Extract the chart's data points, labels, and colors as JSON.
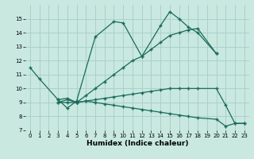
{
  "xlabel": "Humidex (Indice chaleur)",
  "bg_color": "#c8e8e0",
  "line_color": "#1a6b5a",
  "grid_color": "#a8ccc8",
  "xlim": [
    -0.5,
    23.5
  ],
  "ylim": [
    7,
    16
  ],
  "yticks": [
    7,
    8,
    9,
    10,
    11,
    12,
    13,
    14,
    15
  ],
  "xticks": [
    0,
    1,
    2,
    3,
    4,
    5,
    6,
    7,
    8,
    9,
    10,
    11,
    12,
    13,
    14,
    15,
    16,
    17,
    18,
    19,
    20,
    21,
    22,
    23
  ],
  "series": [
    {
      "x": [
        0,
        1,
        3,
        4,
        5,
        7,
        9,
        10,
        12,
        14,
        15,
        16,
        17,
        18,
        20
      ],
      "y": [
        11.5,
        10.7,
        9.2,
        8.6,
        9.1,
        13.7,
        14.8,
        14.7,
        12.3,
        14.5,
        15.5,
        15.0,
        14.4,
        14.0,
        12.5
      ]
    },
    {
      "x": [
        3,
        4,
        5,
        6,
        7,
        8,
        9,
        10,
        11,
        12,
        13,
        14,
        15,
        16,
        17,
        18,
        20
      ],
      "y": [
        9.2,
        9.3,
        9.0,
        9.5,
        10.0,
        10.5,
        11.0,
        11.5,
        12.0,
        12.3,
        12.8,
        13.3,
        13.8,
        14.0,
        14.2,
        14.3,
        12.5
      ]
    },
    {
      "x": [
        3,
        4,
        5,
        6,
        7,
        8,
        9,
        10,
        11,
        12,
        13,
        14,
        15,
        16,
        17,
        18,
        20,
        21,
        22,
        23
      ],
      "y": [
        9.0,
        9.2,
        9.0,
        9.1,
        9.2,
        9.3,
        9.4,
        9.5,
        9.6,
        9.7,
        9.8,
        9.9,
        10.0,
        10.0,
        10.0,
        10.0,
        10.0,
        8.8,
        7.5,
        7.5
      ]
    },
    {
      "x": [
        3,
        4,
        5,
        6,
        7,
        8,
        9,
        10,
        11,
        12,
        13,
        14,
        15,
        16,
        17,
        18,
        20,
        21,
        22,
        23
      ],
      "y": [
        9.0,
        9.0,
        9.0,
        9.1,
        9.0,
        8.9,
        8.8,
        8.7,
        8.6,
        8.5,
        8.4,
        8.3,
        8.2,
        8.1,
        8.0,
        7.9,
        7.8,
        7.3,
        7.5,
        7.5
      ]
    }
  ]
}
